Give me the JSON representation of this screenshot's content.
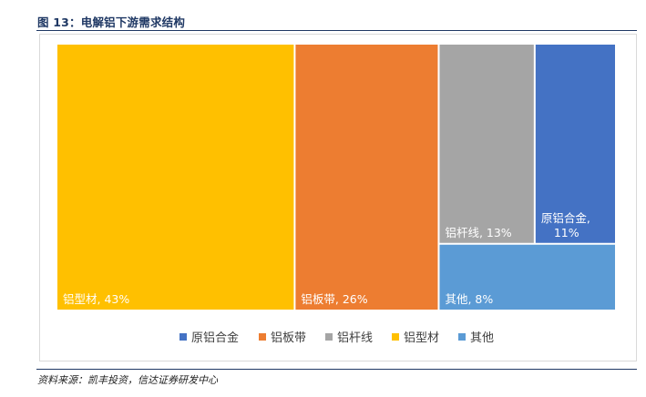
{
  "figure": {
    "title": "图 13：电解铝下游需求结构",
    "source": "资料来源：凯丰投资，信达证券研发中心"
  },
  "chart_data": {
    "type": "treemap",
    "title": "",
    "series": [
      {
        "name": "原铝合金",
        "value": 11,
        "label": "原铝合金,\n11%",
        "color": "#4472c4"
      },
      {
        "name": "铝板带",
        "value": 26,
        "label": "铝板带, 26%",
        "color": "#ed7d31"
      },
      {
        "name": "铝杆线",
        "value": 13,
        "label": "铝杆线, 13%",
        "color": "#a5a5a5"
      },
      {
        "name": "铝型材",
        "value": 43,
        "label": "铝型材, 43%",
        "color": "#ffc000"
      },
      {
        "name": "其他",
        "value": 8,
        "label": "其他, 8%",
        "color": "#5b9bd5"
      }
    ],
    "legend": {
      "position": "bottom",
      "entries": [
        "原铝合金",
        "铝板带",
        "铝杆线",
        "铝型材",
        "其他"
      ]
    }
  }
}
